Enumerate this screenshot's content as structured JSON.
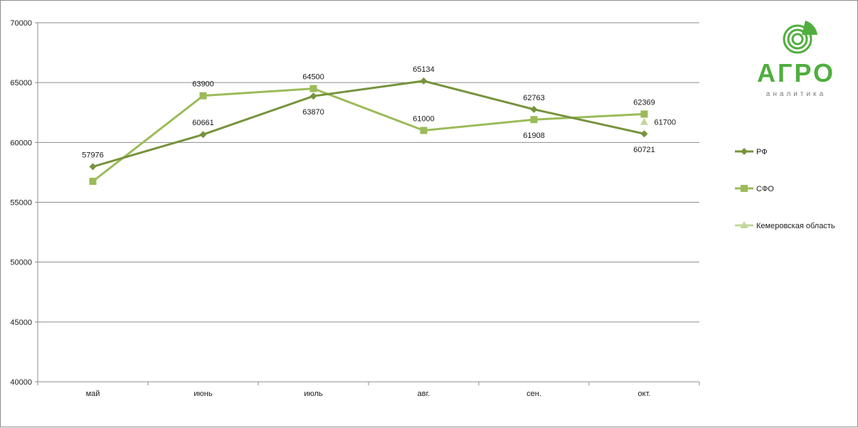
{
  "chart_data": {
    "type": "line",
    "title": "",
    "xlabel": "",
    "ylabel": "",
    "categories": [
      "май",
      "июнь",
      "июль",
      "авг.",
      "сен.",
      "окт."
    ],
    "ylim": [
      40000,
      70000
    ],
    "yticks": [
      40000,
      45000,
      50000,
      55000,
      60000,
      65000,
      70000
    ],
    "grid": "horizontal",
    "legend_position": "right",
    "series": [
      {
        "name": "РФ",
        "marker": "diamond",
        "color": "#76933c",
        "values": [
          57976,
          60661,
          63870,
          65134,
          62763,
          60721
        ],
        "labels": [
          "57976",
          "60661",
          "63870",
          "65134",
          "62763",
          "60721"
        ],
        "label_side": [
          "above",
          "above",
          "below",
          "above",
          "above",
          "below"
        ]
      },
      {
        "name": "СФО",
        "marker": "square",
        "color": "#9bbb59",
        "values": [
          56750,
          63900,
          64500,
          61000,
          61908,
          62369
        ],
        "labels": [
          null,
          "63900",
          "64500",
          "61000",
          "61908",
          "62369"
        ],
        "label_side": [
          "none",
          "above",
          "above",
          "above",
          "below",
          "above"
        ]
      },
      {
        "name": "Кемеровская область",
        "marker": "triangle",
        "color": "#c3d69b",
        "values": [
          null,
          null,
          null,
          null,
          null,
          61700
        ],
        "labels": [
          null,
          null,
          null,
          null,
          null,
          "61700"
        ],
        "label_side": [
          "none",
          "none",
          "none",
          "none",
          "none",
          "right"
        ]
      }
    ]
  },
  "logo": {
    "word": "АГРО",
    "tagline": "аналитика",
    "color": "#4fae3d",
    "icon": "agro-rings-icon"
  }
}
